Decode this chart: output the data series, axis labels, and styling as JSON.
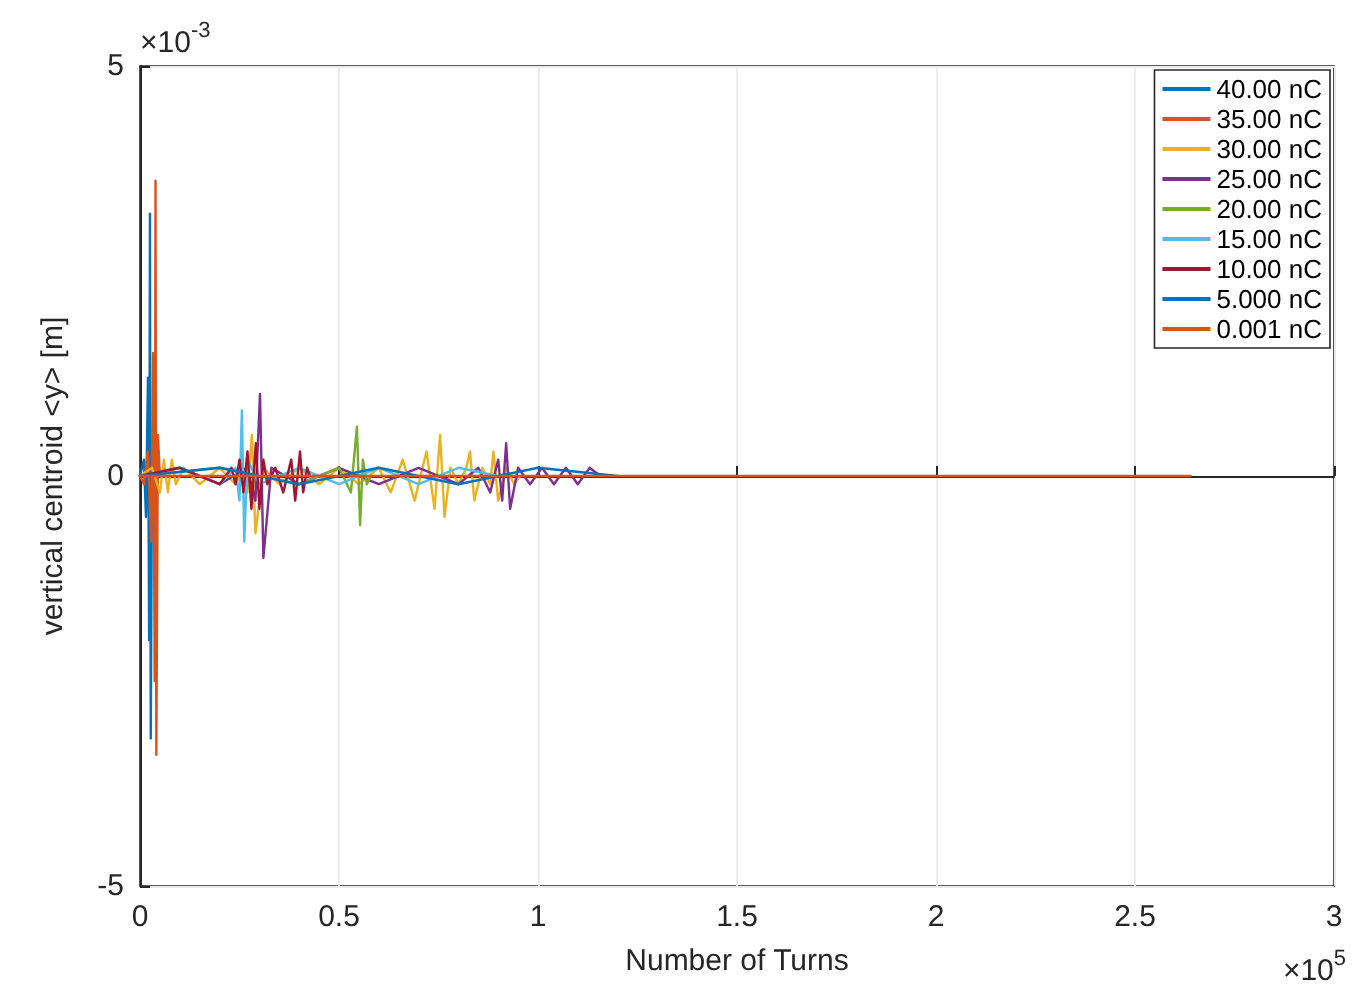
{
  "chart_data": {
    "type": "line",
    "xlabel": "Number of Turns",
    "ylabel": "vertical centroid <y> [m]",
    "xlim": [
      0,
      3
    ],
    "xticks": [
      0,
      0.5,
      1,
      1.5,
      2,
      2.5,
      3
    ],
    "ylim": [
      -5,
      5
    ],
    "yticks": [
      -5,
      0,
      5
    ],
    "grid": true,
    "legend": "top right",
    "line_style": "solid",
    "annotations": [
      "×10$^{-3}$",
      "×10$^{5}$"
    ],
    "series": [
      {
        "name": "40.00 nC",
        "color": "#0072bd",
        "x": [
          0,
          0.01,
          0.015,
          0.02,
          0.023,
          0.025,
          0.027,
          0.03
        ],
        "values": [
          0,
          0.2,
          -0.5,
          1.2,
          -2,
          3.2,
          -3.2,
          0
        ]
      },
      {
        "name": "35.00 nC",
        "color": "#d95319",
        "x": [
          0,
          0.01,
          0.02,
          0.028,
          0.033,
          0.037,
          0.039,
          0.041,
          0.045,
          0.05
        ],
        "values": [
          0,
          -0.1,
          0.3,
          -0.8,
          1.5,
          -2.5,
          3.6,
          -3.4,
          0.5,
          0
        ]
      },
      {
        "name": "30.00 nC",
        "color": "#edb120",
        "x": [
          0,
          0.03,
          0.05,
          0.06,
          0.07,
          0.08,
          0.09,
          0.11,
          0.15,
          0.2,
          0.24,
          0.26,
          0.27,
          0.281,
          0.29,
          0.31,
          0.35,
          0.4,
          0.45,
          0.5,
          0.55,
          0.6,
          0.63,
          0.66,
          0.69,
          0.72,
          0.74,
          0.754,
          0.765,
          0.78,
          0.8,
          0.82,
          0.829,
          0.84,
          0.86,
          0.88,
          0.888,
          0.9,
          0.92,
          0.94,
          0.955
        ],
        "values": [
          0,
          0.1,
          -0.2,
          0.2,
          -0.2,
          0.2,
          -0.1,
          0.1,
          -0.1,
          0.1,
          -0.1,
          0.1,
          -0.2,
          0.5,
          -0.7,
          0.1,
          -0.1,
          0.1,
          -0.1,
          0.1,
          -0.1,
          0.1,
          -0.2,
          0.2,
          -0.3,
          0.3,
          -0.4,
          0.5,
          -0.5,
          0.1,
          -0.1,
          0.1,
          0.3,
          -0.3,
          0.1,
          -0.1,
          0.3,
          -0.3,
          0.1,
          -0.1,
          0
        ]
      },
      {
        "name": "25.00 nC",
        "color": "#7e2f8e",
        "x": [
          0,
          0.1,
          0.2,
          0.27,
          0.29,
          0.3015,
          0.31,
          0.33,
          0.4,
          0.5,
          0.6,
          0.7,
          0.8,
          0.85,
          0.88,
          0.9,
          0.91,
          0.92,
          0.93,
          0.95,
          0.98,
          1.01,
          1.04,
          1.07,
          1.1,
          1.13,
          1.156
        ],
        "values": [
          0,
          0.1,
          -0.1,
          0.1,
          -0.3,
          1,
          -1,
          0.1,
          -0.1,
          0.1,
          -0.1,
          0.1,
          -0.1,
          0.1,
          -0.2,
          0.2,
          -0.3,
          0.4,
          -0.4,
          0.1,
          -0.1,
          0.1,
          -0.1,
          0.1,
          -0.1,
          0.1,
          0
        ]
      },
      {
        "name": "20.00 nC",
        "color": "#77ac30",
        "x": [
          0,
          0.2,
          0.4,
          0.5,
          0.53,
          0.545,
          0.553,
          0.56,
          0.57,
          0.58
        ],
        "values": [
          0,
          0.1,
          -0.1,
          0.1,
          -0.2,
          0.6,
          -0.6,
          0.2,
          -0.1,
          0
        ]
      },
      {
        "name": "15.00 nC",
        "color": "#4dbeee",
        "x": [
          0,
          0.1,
          0.2,
          0.24,
          0.25,
          0.256,
          0.262,
          0.27,
          0.3,
          0.4,
          0.5,
          0.6,
          0.7,
          0.8,
          0.9
        ],
        "values": [
          0,
          0.1,
          -0.1,
          0.1,
          -0.3,
          0.8,
          -0.8,
          0.2,
          -0.1,
          0.1,
          -0.1,
          0.1,
          -0.1,
          0.1,
          0
        ]
      },
      {
        "name": "10.00 nC",
        "color": "#a2142f",
        "x": [
          0,
          0.1,
          0.2,
          0.23,
          0.24,
          0.25,
          0.26,
          0.27,
          0.28,
          0.291,
          0.3,
          0.31,
          0.32,
          0.34,
          0.36,
          0.38,
          0.39,
          0.402,
          0.41,
          0.42,
          0.427
        ],
        "values": [
          0,
          0.1,
          -0.1,
          0.1,
          -0.1,
          0.2,
          -0.2,
          0.3,
          -0.4,
          0.4,
          -0.4,
          0.2,
          -0.1,
          0.1,
          -0.2,
          0.2,
          -0.3,
          0.3,
          -0.2,
          0.1,
          0
        ]
      },
      {
        "name": "5.000 nC",
        "color": "#0072bd",
        "x": [
          0,
          0.2,
          0.4,
          0.6,
          0.8,
          1,
          1.2
        ],
        "values": [
          0,
          0.1,
          -0.1,
          0.1,
          -0.1,
          0.1,
          0
        ]
      },
      {
        "name": "0.001 nC",
        "color": "#d95319",
        "x": [
          0,
          2.64
        ],
        "values": [
          0,
          0
        ]
      }
    ]
  }
}
